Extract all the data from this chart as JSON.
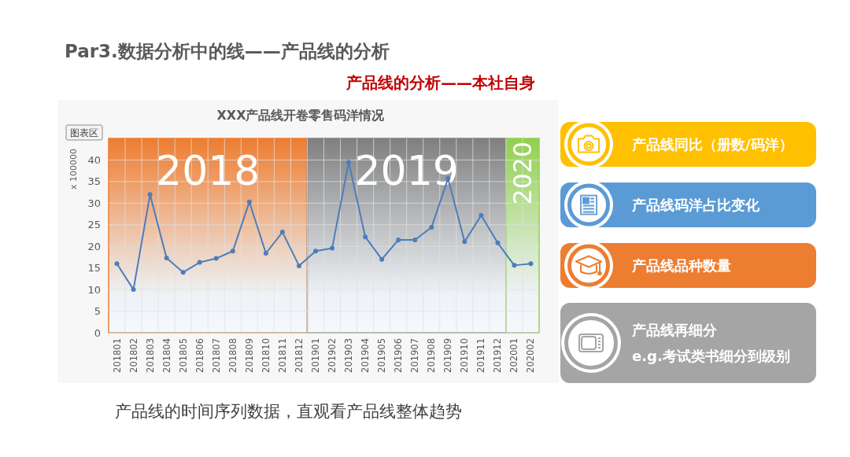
{
  "chart_data": [
    {
      "type": "line",
      "title": "XXX产品线开卷零售码洋情况",
      "ylabel": "x 100000",
      "categories": [
        "201801",
        "201802",
        "201803",
        "201804",
        "201805",
        "201806",
        "201807",
        "201808",
        "201809",
        "201810",
        "201811",
        "201812",
        "201901",
        "201902",
        "201903",
        "201904",
        "201905",
        "201906",
        "201907",
        "201908",
        "201909",
        "201910",
        "201911",
        "201912",
        "202001",
        "202002"
      ],
      "series": [
        {
          "color": "#4a7ebb",
          "values": [
            16,
            10,
            32,
            17.3,
            14,
            16.3,
            17.2,
            18.9,
            30.3,
            18.4,
            23.3,
            15.5,
            18.9,
            19.6,
            39.5,
            22.2,
            17,
            21.5,
            21.5,
            24.4,
            35.7,
            21.1,
            27.2,
            20.8,
            15.6,
            16
          ]
        }
      ],
      "ylim": [
        0,
        45
      ],
      "yticks": [
        0,
        5,
        10,
        15,
        20,
        25,
        30,
        35,
        40
      ],
      "grid": true,
      "marker": "circle",
      "line_style": "solid",
      "bands": [
        {
          "axis": "x",
          "from": "201801",
          "to": "201812",
          "label": "2018",
          "color": "#ed7d31"
        },
        {
          "axis": "x",
          "from": "201901",
          "to": "201912",
          "label": "2019",
          "color": "#7f7f7f"
        },
        {
          "axis": "x",
          "from": "202001",
          "to": "202002",
          "label": "2020",
          "color": "#92d050"
        }
      ],
      "annotations": [
        "Par3.数据分析中的线——产品线的分析",
        "产品线的分析——本社自身",
        "产品线的时间序列数据，直观看产品线整体趋势",
        "图表区"
      ]
    },
    {
      "type": "other",
      "annotations": [
        "产品线同比（册数/码洋）",
        "产品线码洋占比变化",
        "产品线品种数量",
        "产品线再细分",
        "e.g.考试类书细分到级别"
      ]
    }
  ]
}
